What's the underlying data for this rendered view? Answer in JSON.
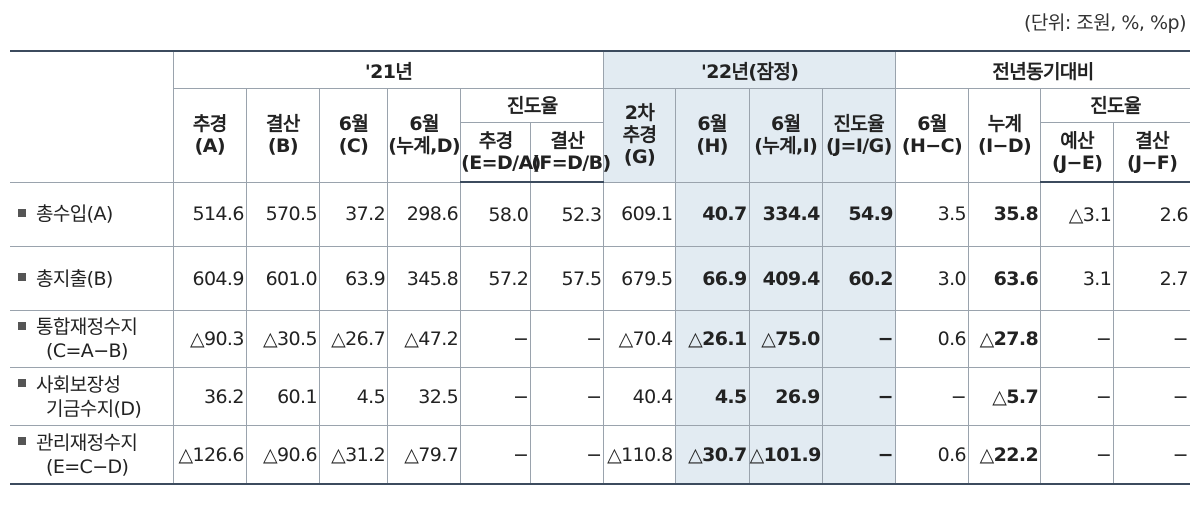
{
  "unit_note": "(단위: 조원, %, %p)",
  "header": {
    "group_21": "'21년",
    "group_22": "'22년(잠정)",
    "group_yoy": "전년동기대비",
    "progress_21": "진도율",
    "progress_yoy": "진도율",
    "cols": [
      [
        "추경",
        "(A)"
      ],
      [
        "결산",
        "(B)"
      ],
      [
        "6월",
        "(C)"
      ],
      [
        "6월",
        "(누계,D)"
      ],
      [
        "추경",
        "(E=D/A)"
      ],
      [
        "결산",
        "(F=D/B)"
      ],
      [
        "2차",
        "추경",
        "(G)"
      ],
      [
        "6월",
        "(H)"
      ],
      [
        "6월",
        "(누계,I)"
      ],
      [
        "진도율",
        "(J=I/G)"
      ],
      [
        "6월",
        "(H−C)"
      ],
      [
        "누계",
        "(I−D)"
      ],
      [
        "예산",
        "(J−E)"
      ],
      [
        "결산",
        "(J−F)"
      ]
    ]
  },
  "rows": [
    {
      "label": [
        "총수입(A)"
      ],
      "values": [
        "514.6",
        "570.5",
        "37.2",
        "298.6",
        "58.0",
        "52.3",
        "609.1",
        "40.7",
        "334.4",
        "54.9",
        "3.5",
        "35.8",
        "△3.1",
        "2.6"
      ]
    },
    {
      "label": [
        "총지출(B)"
      ],
      "values": [
        "604.9",
        "601.0",
        "63.9",
        "345.8",
        "57.2",
        "57.5",
        "679.5",
        "66.9",
        "409.4",
        "60.2",
        "3.0",
        "63.6",
        "3.1",
        "2.7"
      ]
    },
    {
      "label": [
        "통합재정수지",
        "(C=A−B)"
      ],
      "values": [
        "△90.3",
        "△30.5",
        "△26.7",
        "△47.2",
        "−",
        "−",
        "△70.4",
        "△26.1",
        "△75.0",
        "−",
        "0.6",
        "△27.8",
        "−",
        "−"
      ]
    },
    {
      "label": [
        "사회보장성",
        "기금수지(D)"
      ],
      "values": [
        "36.2",
        "60.1",
        "4.5",
        "32.5",
        "−",
        "−",
        "40.4",
        "4.5",
        "26.9",
        "−",
        "−",
        "△5.7",
        "−",
        "−"
      ]
    },
    {
      "label": [
        "관리재정수지",
        "(E=C−D)"
      ],
      "values": [
        "△126.6",
        "△90.6",
        "△31.2",
        "△79.7",
        "−",
        "−",
        "△110.8",
        "△30.7",
        "△101.9",
        "−",
        "0.6",
        "△22.2",
        "−",
        "−"
      ]
    }
  ]
}
